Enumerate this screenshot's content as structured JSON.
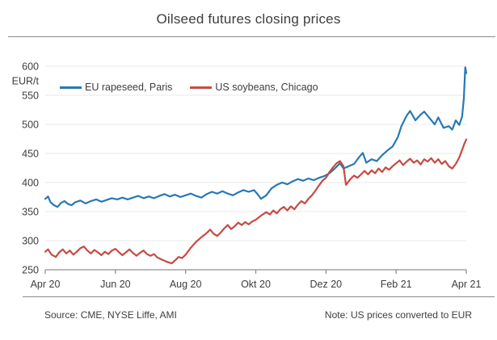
{
  "title": "Oilseed futures closing prices",
  "footer": {
    "source": "Source: CME, NYSE Liffe, AMI",
    "note": "Note: US prices converted to EUR"
  },
  "colors": {
    "rapeseed_blue": "#2879b2",
    "soybeans_red": "#c64a43",
    "grid": "#e8e8e8",
    "axis": "#8f8f8f",
    "text": "#3d3d3d",
    "rule": "#8a8a8a"
  },
  "chart_data": {
    "type": "line",
    "title": "Oilseed futures closing prices",
    "ylabel": "EUR/t",
    "xlabel": "",
    "xlim": [
      0,
      12
    ],
    "ylim": [
      250,
      600
    ],
    "grid": "horizontal",
    "legend_position": "top-left-inside",
    "x_unit": "months since Apr 2020",
    "x_tick_positions": [
      0,
      2,
      4,
      6,
      8,
      10,
      12
    ],
    "x_tick_labels": [
      "Apr 20",
      "Jun 20",
      "Aug 20",
      "Okt 20",
      "Dez 20",
      "Feb 21",
      "Apr 21"
    ],
    "y_ticks": [
      250,
      300,
      350,
      400,
      450,
      500,
      550,
      600
    ],
    "y_unit_label": "EUR/t",
    "series": [
      {
        "name": "EU rapeseed, Paris",
        "color": "#2879b2",
        "points": [
          [
            0,
            372
          ],
          [
            0.08,
            376
          ],
          [
            0.15,
            366
          ],
          [
            0.25,
            361
          ],
          [
            0.35,
            358
          ],
          [
            0.45,
            365
          ],
          [
            0.55,
            368
          ],
          [
            0.65,
            363
          ],
          [
            0.75,
            361
          ],
          [
            0.85,
            366
          ],
          [
            1,
            369
          ],
          [
            1.15,
            364
          ],
          [
            1.3,
            368
          ],
          [
            1.45,
            371
          ],
          [
            1.6,
            367
          ],
          [
            1.75,
            370
          ],
          [
            1.9,
            373
          ],
          [
            2.05,
            371
          ],
          [
            2.2,
            374
          ],
          [
            2.35,
            371
          ],
          [
            2.5,
            374
          ],
          [
            2.65,
            377
          ],
          [
            2.8,
            373
          ],
          [
            2.95,
            376
          ],
          [
            3.1,
            373
          ],
          [
            3.25,
            377
          ],
          [
            3.4,
            380
          ],
          [
            3.55,
            376
          ],
          [
            3.7,
            379
          ],
          [
            3.85,
            375
          ],
          [
            4,
            378
          ],
          [
            4.15,
            381
          ],
          [
            4.3,
            377
          ],
          [
            4.45,
            374
          ],
          [
            4.6,
            380
          ],
          [
            4.75,
            384
          ],
          [
            4.9,
            381
          ],
          [
            5.05,
            385
          ],
          [
            5.2,
            381
          ],
          [
            5.35,
            378
          ],
          [
            5.5,
            383
          ],
          [
            5.65,
            387
          ],
          [
            5.8,
            384
          ],
          [
            5.95,
            387
          ],
          [
            6.05,
            380
          ],
          [
            6.15,
            372
          ],
          [
            6.3,
            378
          ],
          [
            6.45,
            390
          ],
          [
            6.6,
            396
          ],
          [
            6.75,
            400
          ],
          [
            6.9,
            397
          ],
          [
            7.05,
            402
          ],
          [
            7.2,
            406
          ],
          [
            7.35,
            403
          ],
          [
            7.5,
            407
          ],
          [
            7.65,
            404
          ],
          [
            7.8,
            408
          ],
          [
            7.95,
            411
          ],
          [
            8.1,
            416
          ],
          [
            8.25,
            424
          ],
          [
            8.4,
            433
          ],
          [
            8.5,
            424
          ],
          [
            8.65,
            428
          ],
          [
            8.8,
            432
          ],
          [
            8.95,
            444
          ],
          [
            9.05,
            451
          ],
          [
            9.15,
            434
          ],
          [
            9.3,
            440
          ],
          [
            9.45,
            437
          ],
          [
            9.6,
            447
          ],
          [
            9.75,
            455
          ],
          [
            9.9,
            462
          ],
          [
            10.05,
            478
          ],
          [
            10.15,
            497
          ],
          [
            10.3,
            515
          ],
          [
            10.4,
            523
          ],
          [
            10.55,
            507
          ],
          [
            10.7,
            517
          ],
          [
            10.8,
            522
          ],
          [
            10.95,
            511
          ],
          [
            11.1,
            500
          ],
          [
            11.2,
            512
          ],
          [
            11.35,
            494
          ],
          [
            11.5,
            497
          ],
          [
            11.6,
            491
          ],
          [
            11.7,
            507
          ],
          [
            11.8,
            499
          ],
          [
            11.88,
            513
          ],
          [
            11.93,
            545
          ],
          [
            11.97,
            598
          ],
          [
            12,
            588
          ]
        ]
      },
      {
        "name": "US soybeans, Chicago",
        "color": "#c64a43",
        "points": [
          [
            0,
            281
          ],
          [
            0.08,
            285
          ],
          [
            0.18,
            276
          ],
          [
            0.3,
            272
          ],
          [
            0.4,
            280
          ],
          [
            0.5,
            285
          ],
          [
            0.6,
            278
          ],
          [
            0.7,
            283
          ],
          [
            0.8,
            276
          ],
          [
            0.9,
            281
          ],
          [
            1,
            287
          ],
          [
            1.1,
            290
          ],
          [
            1.2,
            283
          ],
          [
            1.3,
            278
          ],
          [
            1.4,
            284
          ],
          [
            1.5,
            280
          ],
          [
            1.6,
            275
          ],
          [
            1.7,
            281
          ],
          [
            1.8,
            277
          ],
          [
            1.9,
            283
          ],
          [
            2,
            286
          ],
          [
            2.1,
            280
          ],
          [
            2.2,
            275
          ],
          [
            2.3,
            280
          ],
          [
            2.4,
            285
          ],
          [
            2.5,
            279
          ],
          [
            2.6,
            274
          ],
          [
            2.7,
            279
          ],
          [
            2.8,
            283
          ],
          [
            2.9,
            277
          ],
          [
            3,
            274
          ],
          [
            3.1,
            277
          ],
          [
            3.2,
            271
          ],
          [
            3.3,
            268
          ],
          [
            3.45,
            264
          ],
          [
            3.6,
            261
          ],
          [
            3.7,
            266
          ],
          [
            3.8,
            272
          ],
          [
            3.9,
            270
          ],
          [
            4,
            276
          ],
          [
            4.15,
            288
          ],
          [
            4.3,
            298
          ],
          [
            4.45,
            306
          ],
          [
            4.6,
            313
          ],
          [
            4.7,
            319
          ],
          [
            4.8,
            312
          ],
          [
            4.9,
            308
          ],
          [
            5,
            314
          ],
          [
            5.1,
            321
          ],
          [
            5.2,
            327
          ],
          [
            5.3,
            320
          ],
          [
            5.4,
            325
          ],
          [
            5.5,
            331
          ],
          [
            5.6,
            327
          ],
          [
            5.7,
            332
          ],
          [
            5.8,
            328
          ],
          [
            5.9,
            333
          ],
          [
            6,
            336
          ],
          [
            6.15,
            343
          ],
          [
            6.3,
            349
          ],
          [
            6.4,
            345
          ],
          [
            6.5,
            352
          ],
          [
            6.6,
            347
          ],
          [
            6.7,
            354
          ],
          [
            6.8,
            358
          ],
          [
            6.9,
            352
          ],
          [
            7,
            359
          ],
          [
            7.1,
            354
          ],
          [
            7.2,
            362
          ],
          [
            7.3,
            368
          ],
          [
            7.4,
            364
          ],
          [
            7.5,
            372
          ],
          [
            7.6,
            378
          ],
          [
            7.7,
            386
          ],
          [
            7.8,
            395
          ],
          [
            7.9,
            403
          ],
          [
            8,
            408
          ],
          [
            8.1,
            418
          ],
          [
            8.2,
            426
          ],
          [
            8.3,
            433
          ],
          [
            8.4,
            437
          ],
          [
            8.5,
            428
          ],
          [
            8.57,
            396
          ],
          [
            8.7,
            406
          ],
          [
            8.8,
            412
          ],
          [
            8.9,
            408
          ],
          [
            9,
            414
          ],
          [
            9.1,
            420
          ],
          [
            9.2,
            414
          ],
          [
            9.3,
            421
          ],
          [
            9.4,
            416
          ],
          [
            9.5,
            424
          ],
          [
            9.6,
            418
          ],
          [
            9.7,
            426
          ],
          [
            9.8,
            422
          ],
          [
            9.9,
            428
          ],
          [
            10,
            433
          ],
          [
            10.1,
            438
          ],
          [
            10.2,
            430
          ],
          [
            10.3,
            436
          ],
          [
            10.4,
            441
          ],
          [
            10.5,
            434
          ],
          [
            10.6,
            438
          ],
          [
            10.7,
            431
          ],
          [
            10.8,
            440
          ],
          [
            10.9,
            436
          ],
          [
            11,
            442
          ],
          [
            11.1,
            434
          ],
          [
            11.2,
            440
          ],
          [
            11.3,
            432
          ],
          [
            11.4,
            437
          ],
          [
            11.5,
            428
          ],
          [
            11.6,
            424
          ],
          [
            11.7,
            432
          ],
          [
            11.8,
            443
          ],
          [
            11.88,
            456
          ],
          [
            11.94,
            466
          ],
          [
            12,
            474
          ]
        ]
      }
    ]
  }
}
